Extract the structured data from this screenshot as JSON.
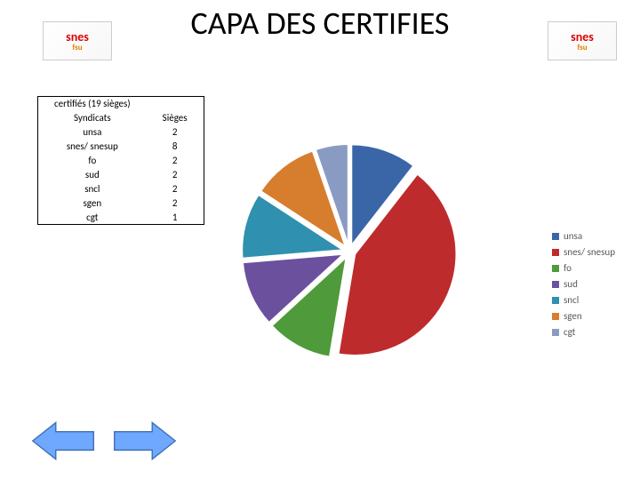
{
  "title": "CAPA DES CERTIFIES",
  "logo": {
    "line1": "snes",
    "line2": "fsu"
  },
  "table": {
    "header1": "certifiés (19 sièges)",
    "col1_label": "Syndicats",
    "col2_label": "Sièges",
    "rows": [
      {
        "name": "unsa",
        "seats": 2
      },
      {
        "name": "snes/ snesup",
        "seats": 8
      },
      {
        "name": "fo",
        "seats": 2
      },
      {
        "name": "sud",
        "seats": 2
      },
      {
        "name": "sncl",
        "seats": 2
      },
      {
        "name": "sgen",
        "seats": 2
      },
      {
        "name": "cgt",
        "seats": 1
      }
    ]
  },
  "pie": {
    "type": "pie",
    "total": 19,
    "start_angle_deg": 0,
    "explode": 0.06,
    "gap_color": "#ffffff",
    "slices": [
      {
        "label": "unsa",
        "value": 2,
        "color": "#3a66a8"
      },
      {
        "label": "snes/ snesup",
        "value": 8,
        "color": "#be2b2c"
      },
      {
        "label": "fo",
        "value": 2,
        "color": "#4f9a3a"
      },
      {
        "label": "sud",
        "value": 2,
        "color": "#6b509e"
      },
      {
        "label": "sncl",
        "value": 2,
        "color": "#2f90b0"
      },
      {
        "label": "sgen",
        "value": 2,
        "color": "#d77d2e"
      },
      {
        "label": "cgt",
        "value": 1,
        "color": "#8a9bc3"
      }
    ],
    "background_color": "#ffffff"
  },
  "legend": {
    "fontsize": 11,
    "text_color": "#595959"
  },
  "nav_arrow_fill": "#6fa8ff",
  "nav_arrow_stroke": "#3d6db0"
}
